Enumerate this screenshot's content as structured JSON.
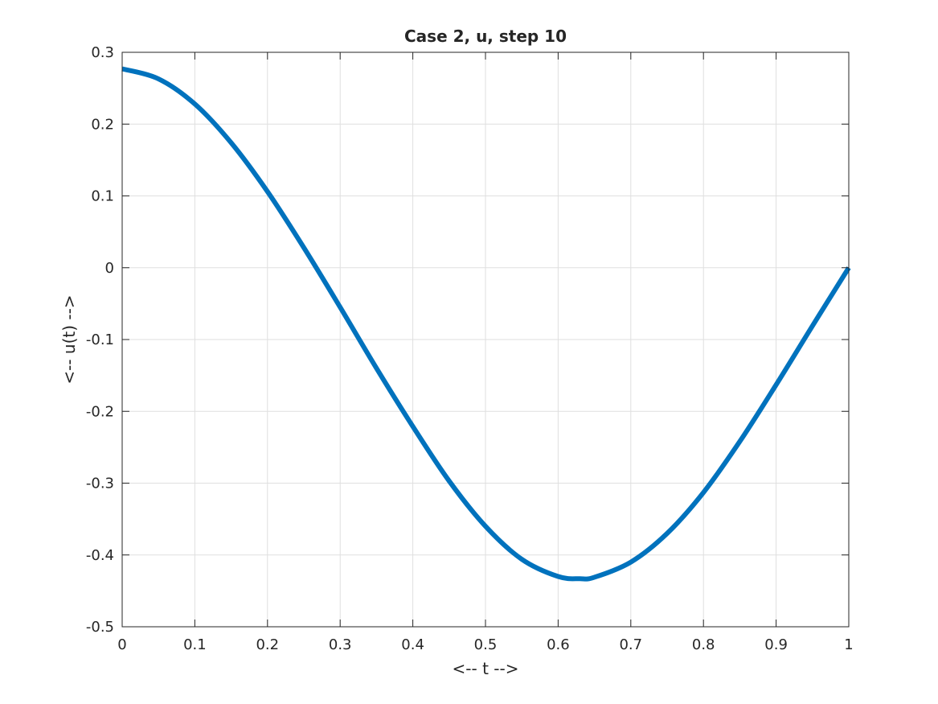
{
  "chart_data": {
    "type": "line",
    "title": "Case 2, u, step 10",
    "xlabel": "<-- t -->",
    "ylabel": "<-- u(t) -->",
    "xlim": [
      0,
      1
    ],
    "ylim": [
      -0.5,
      0.3
    ],
    "xticks": [
      "0",
      "0.1",
      "0.2",
      "0.3",
      "0.4",
      "0.5",
      "0.6",
      "0.7",
      "0.8",
      "0.9",
      "1"
    ],
    "yticks": [
      "0.3",
      "0.2",
      "0.1",
      "0",
      "-0.1",
      "-0.2",
      "-0.3",
      "-0.4",
      "-0.5"
    ],
    "grid": true,
    "line_color": "#0072BD",
    "series": [
      {
        "x": [
          0,
          0.05,
          0.1,
          0.15,
          0.2,
          0.25,
          0.3,
          0.35,
          0.4,
          0.45,
          0.5,
          0.55,
          0.6,
          0.63,
          0.65,
          0.7,
          0.75,
          0.8,
          0.85,
          0.9,
          0.95,
          1
        ],
        "y": [
          0.277,
          0.263,
          0.228,
          0.174,
          0.106,
          0.028,
          -0.055,
          -0.14,
          -0.221,
          -0.297,
          -0.36,
          -0.406,
          -0.43,
          -0.433,
          -0.431,
          -0.41,
          -0.37,
          -0.313,
          -0.242,
          -0.163,
          -0.081,
          0.0
        ]
      }
    ]
  }
}
